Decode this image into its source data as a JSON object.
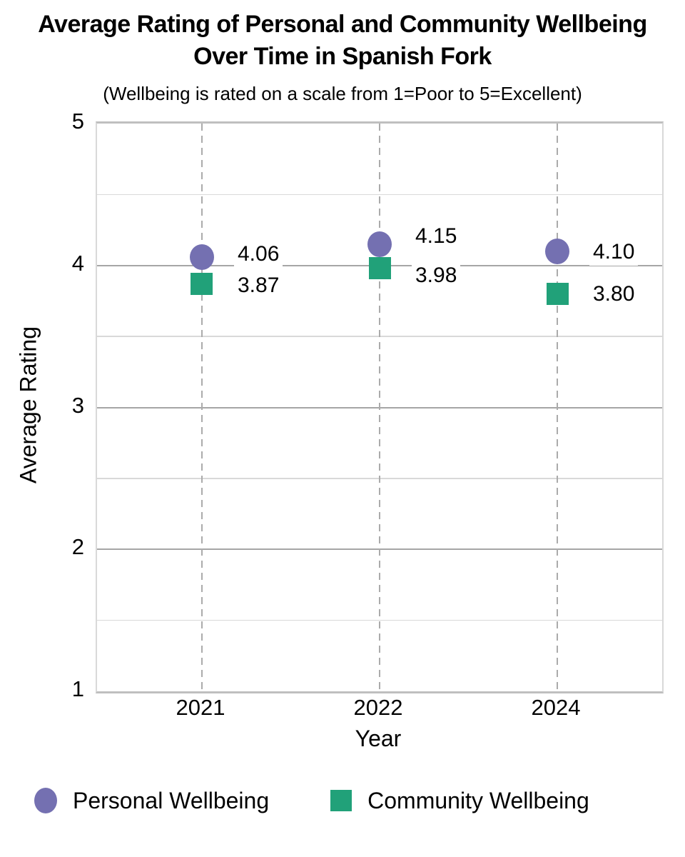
{
  "title": {
    "line1": "Average Rating of Personal and Community Wellbeing",
    "line2": "Over Time in Spanish Fork"
  },
  "subtitle": "(Wellbeing is rated on a scale from 1=Poor to 5=Excellent)",
  "chart_data": {
    "type": "scatter",
    "title": "Average Rating of Personal and Community Wellbeing Over Time in Spanish Fork",
    "subtitle": "(Wellbeing is rated on a scale from 1=Poor to 5=Excellent)",
    "xlabel": "Year",
    "ylabel": "Average Rating",
    "ylim": [
      1,
      5
    ],
    "y_major_ticks": [
      5,
      4,
      3,
      2,
      1
    ],
    "y_minor_ticks": [
      4.5,
      3.5,
      2.5,
      1.5
    ],
    "grid": {
      "horizontal": true,
      "vertical": "dashed"
    },
    "legend_position": "bottom",
    "categories": [
      "2021",
      "2022",
      "2024"
    ],
    "series": [
      {
        "name": "Personal Wellbeing",
        "marker": "circle",
        "color": "#7470B1",
        "values": [
          4.06,
          4.15,
          4.1
        ],
        "labels": [
          "4.06",
          "4.15",
          "4.10"
        ]
      },
      {
        "name": "Community Wellbeing",
        "marker": "square",
        "color": "#21A179",
        "values": [
          3.87,
          3.98,
          3.8
        ],
        "labels": [
          "3.87",
          "3.98",
          "3.80"
        ]
      }
    ],
    "colors": {
      "grid_major": "#a6a6a6",
      "grid_minor": "#d9d9d9",
      "axis_border": "#bfbfbf",
      "vertical_dash": "#ababab",
      "text": "#000000"
    }
  }
}
